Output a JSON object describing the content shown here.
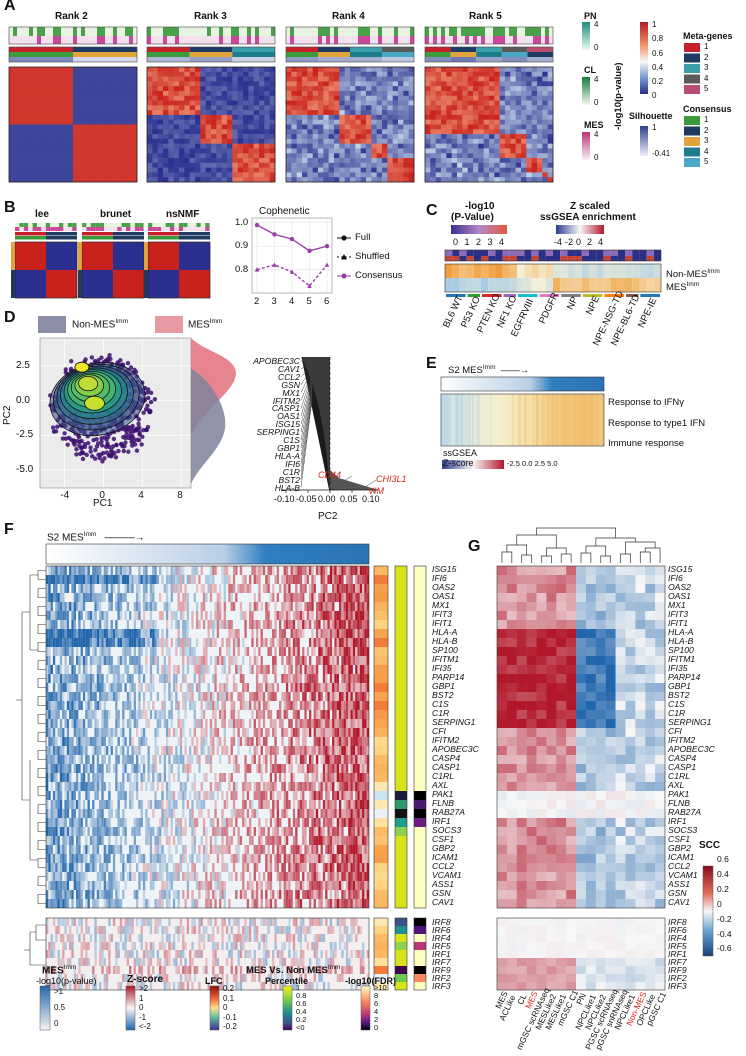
{
  "panels": [
    "A",
    "B",
    "C",
    "D",
    "E",
    "F",
    "G"
  ],
  "panelA": {
    "ranks": [
      "Rank 2",
      "Rank 3",
      "Rank 4",
      "Rank 5"
    ],
    "side_labels": [
      "PN",
      "CL",
      "MES",
      "Silhouette"
    ],
    "pval_title": "-log10(p-value)",
    "pval_ticks": [
      "1",
      "0.8",
      "0.6",
      "0.4",
      "0.2",
      "0"
    ],
    "pn_ticks": [
      "4",
      "0"
    ],
    "cl_ticks": [
      "4",
      "0"
    ],
    "mes_ticks": [
      "4",
      "0"
    ],
    "sil_ticks": [
      "1",
      "-0.41"
    ],
    "meta_title": "Meta-genes",
    "consensus_title": "Consensus",
    "meta_items": [
      "1",
      "2",
      "3",
      "4",
      "5"
    ],
    "consensus_items": [
      "1",
      "2",
      "3",
      "4",
      "5"
    ],
    "meta_colors": [
      "#c7202a",
      "#1e3b66",
      "#3a9fa9",
      "#5b5b5b",
      "#b84d6f"
    ],
    "consensus_colors": [
      "#3c9b3a",
      "#1f3a5f",
      "#e2a33b",
      "#1e7d8c",
      "#4ba7c6"
    ]
  },
  "panelB": {
    "methods": [
      "lee",
      "brunet",
      "nsNMF"
    ],
    "cophenetic_title": "Cophenetic",
    "legend": [
      "Full",
      "Shuffled",
      "Consensus"
    ]
  },
  "chart_data": [
    {
      "type": "line",
      "title": "Cophenetic",
      "x": [
        2,
        3,
        4,
        5,
        6
      ],
      "series": [
        {
          "name": "Full",
          "values": [
            0.99,
            0.95,
            0.93,
            0.88,
            0.9
          ]
        },
        {
          "name": "Shuffled",
          "values": [
            0.8,
            0.82,
            0.79,
            0.73,
            0.82
          ]
        }
      ],
      "ylim": [
        0.7,
        1.02
      ],
      "yticks": [
        0.8,
        0.9,
        1.0
      ]
    },
    {
      "type": "bar",
      "title": "PC2 loadings",
      "xlabel": "PC2",
      "xticks": [
        "-0.10",
        "-0.05",
        "0.00",
        "0.05",
        "0.10"
      ],
      "labeled_genes": [
        "APOBEC3C",
        "CAV1",
        "CCL2",
        "GSN",
        "MX1",
        "IFITM2",
        "CASP1",
        "OAS1",
        "ISG15",
        "SERPING1",
        "C1S",
        "GBP1",
        "HLA-A",
        "IFI6",
        "C1R",
        "BST2",
        "HLA-B"
      ],
      "positive_genes": [
        "CD44",
        "CHI3L1",
        "VIM"
      ]
    },
    {
      "type": "scatter",
      "title": "PCA density",
      "xlabel": "PC1",
      "ylabel": "PC2",
      "xticks": [
        "-4",
        "0",
        "4",
        "8"
      ],
      "yticks": [
        "2.5",
        "0.0",
        "-2.5",
        "-5.0"
      ],
      "legend": [
        "Non-MES",
        "MES"
      ]
    }
  ],
  "panelC": {
    "pval_title1": "-log10",
    "pval_title2": "(P-Value)",
    "pval_ticks": [
      "0",
      "1",
      "2",
      "3",
      "4"
    ],
    "z_title1": "Z scaled",
    "z_title2": "ssGSEA enrichment",
    "z_ticks": [
      "-4",
      "-2",
      "0",
      "2",
      "4"
    ],
    "rows": [
      "Non-MES",
      "MES"
    ],
    "imm": "Imm",
    "groups": [
      "BL6 WT",
      "P53 KO",
      "PTEN KO",
      "NF1 KO",
      "EGFRVIII",
      "PDGFR",
      "NP",
      "NPE",
      "NPE-NSG-TD",
      "NPE-BL6-TD",
      "NPE-IE"
    ],
    "group_colors": [
      "#1f77b4",
      "#2ca02c",
      "#d62728",
      "#9467bd",
      "#17becf",
      "#e377c2",
      "#7f7f7f",
      "#bcbd22",
      "#ff7f0e",
      "#8c564b",
      "#1f77b4"
    ]
  },
  "panelE": {
    "arrow_label": "S2 MES",
    "terms": [
      "Response to IFNγ",
      "Response to type1 IFN",
      "Immune response"
    ],
    "legend_title": "ssGSEA Z-score",
    "legend_ticks": [
      "-2.5",
      "0.0",
      "2.5",
      "5.0"
    ]
  },
  "panelF": {
    "arrow_label": "S2 MES",
    "genes_top": [
      "ISG15",
      "IFI6",
      "OAS2",
      "OAS1",
      "MX1",
      "IFIT3",
      "IFIT1",
      "HLA-A",
      "HLA-B",
      "SP100",
      "IFITM1",
      "IFI35",
      "PARP14",
      "GBP1",
      "BST2",
      "C1S",
      "C1R",
      "SERPING1",
      "CFI",
      "IFITM2",
      "APOBEC3C",
      "CASP4",
      "CASP1",
      "C1RL",
      "AXL",
      "PAK1",
      "FLNB",
      "RAB27A",
      "IRF1",
      "SOCS3",
      "CSF1",
      "GBP2",
      "ICAM1",
      "CCL2",
      "VCAM1",
      "ASS1",
      "GSN",
      "CAV1"
    ],
    "genes_bottom": [
      "IRF8",
      "IRF6",
      "IRF4",
      "IRF5",
      "IRF1",
      "IRF7",
      "IRF9",
      "IRF2",
      "IRF3"
    ],
    "legend": {
      "mes_title": "MES",
      "mes_sub": "-log10(p-value)",
      "mes_ticks": [
        ">1",
        "0.5",
        "0"
      ],
      "z_title": "Z-score",
      "z_ticks": [
        ">2",
        "1",
        "0",
        "-1",
        "<-2"
      ],
      "vs_title": "MES Vs. Non MES",
      "lfc_title": "LFC",
      "lfc_ticks": [
        "0.2",
        "0.1",
        "0",
        "-0.1",
        "-0.2"
      ],
      "pct_title": "Percentile",
      "pct_ticks": [
        "1",
        "0.8",
        "0.6",
        "0.4",
        "0.2",
        "<0"
      ],
      "fdr_title": "-log10(FDR)",
      "fdr_ticks": [
        ">10",
        "8",
        "6",
        "4",
        "2",
        "0"
      ]
    }
  },
  "panelG": {
    "genes_top": [
      "ISG15",
      "IFI6",
      "OAS2",
      "OAS1",
      "MX1",
      "IFIT3",
      "IFIT1",
      "HLA-A",
      "HLA-B",
      "SP100",
      "IFITM1",
      "IFI35",
      "PARP14",
      "GBP1",
      "BST2",
      "C1S",
      "C1R",
      "SERPING1",
      "CFI",
      "IFITM2",
      "APOBEC3C",
      "CASP4",
      "CASP1",
      "C1RL",
      "AXL",
      "PAK1",
      "FLNB",
      "RAB27A",
      "IRF1",
      "SOCS3",
      "CSF1",
      "GBP2",
      "ICAM1",
      "CCL2",
      "VCAM1",
      "ASS1",
      "GSN",
      "CAV1"
    ],
    "genes_bottom": [
      "IRF8",
      "IRF6",
      "IRF4",
      "IRF5",
      "IRF1",
      "IRF7",
      "IRF9",
      "IRF2",
      "IRF3"
    ],
    "columns": [
      "MES",
      "ACLike",
      "CL",
      "MES",
      "mGSC scRNAseq",
      "MESLike2",
      "MESLike1",
      "mGSC C1",
      "PN",
      "NPCLike1",
      "NPCLike2",
      "PGSC scRNAseq",
      "pGSC snRNAseq",
      "NPCLike1",
      "Non-MES",
      "OPCLike",
      "pGSC C1"
    ],
    "columns_red": [
      false,
      false,
      false,
      true,
      false,
      false,
      false,
      false,
      false,
      false,
      false,
      false,
      false,
      false,
      true,
      false,
      false
    ],
    "scc_title": "SCC",
    "scc_ticks": [
      "0.6",
      "0.4",
      "0.2",
      "0",
      "-0.2",
      "-0.4",
      "-0.6"
    ]
  }
}
